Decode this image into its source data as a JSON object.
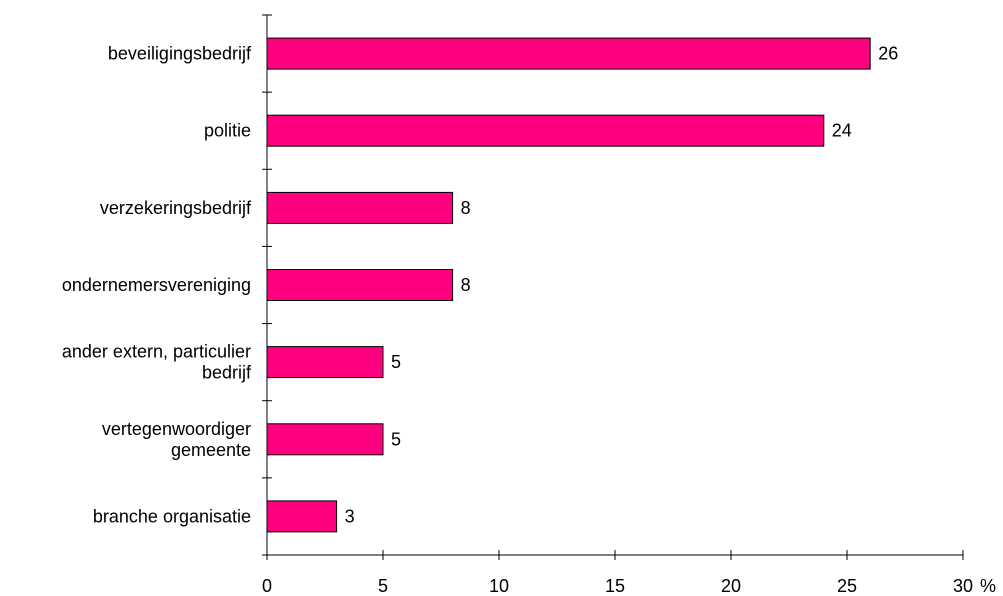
{
  "chart_data": {
    "type": "bar",
    "orientation": "horizontal",
    "categories": [
      [
        "beveiligingsbedrijf"
      ],
      [
        "politie"
      ],
      [
        "verzekeringsbedrijf"
      ],
      [
        "ondernemersvereniging"
      ],
      [
        "ander extern, particulier",
        "bedrijf"
      ],
      [
        "vertegenwoordiger",
        "gemeente"
      ],
      [
        "branche organisatie"
      ]
    ],
    "values": [
      26,
      24,
      8,
      8,
      5,
      5,
      3
    ],
    "value_labels": [
      "26",
      "24",
      "8",
      "8",
      "5",
      "5",
      "3"
    ],
    "xlim": [
      0,
      30
    ],
    "xticks": [
      0,
      5,
      10,
      15,
      20,
      25,
      30
    ],
    "xtick_labels": [
      "0",
      "5",
      "10",
      "15",
      "20",
      "25",
      "30"
    ],
    "x_unit": "%",
    "title": "",
    "xlabel": "",
    "ylabel": "",
    "grid": false,
    "legend": "none",
    "bar_color": "#ff0080"
  }
}
